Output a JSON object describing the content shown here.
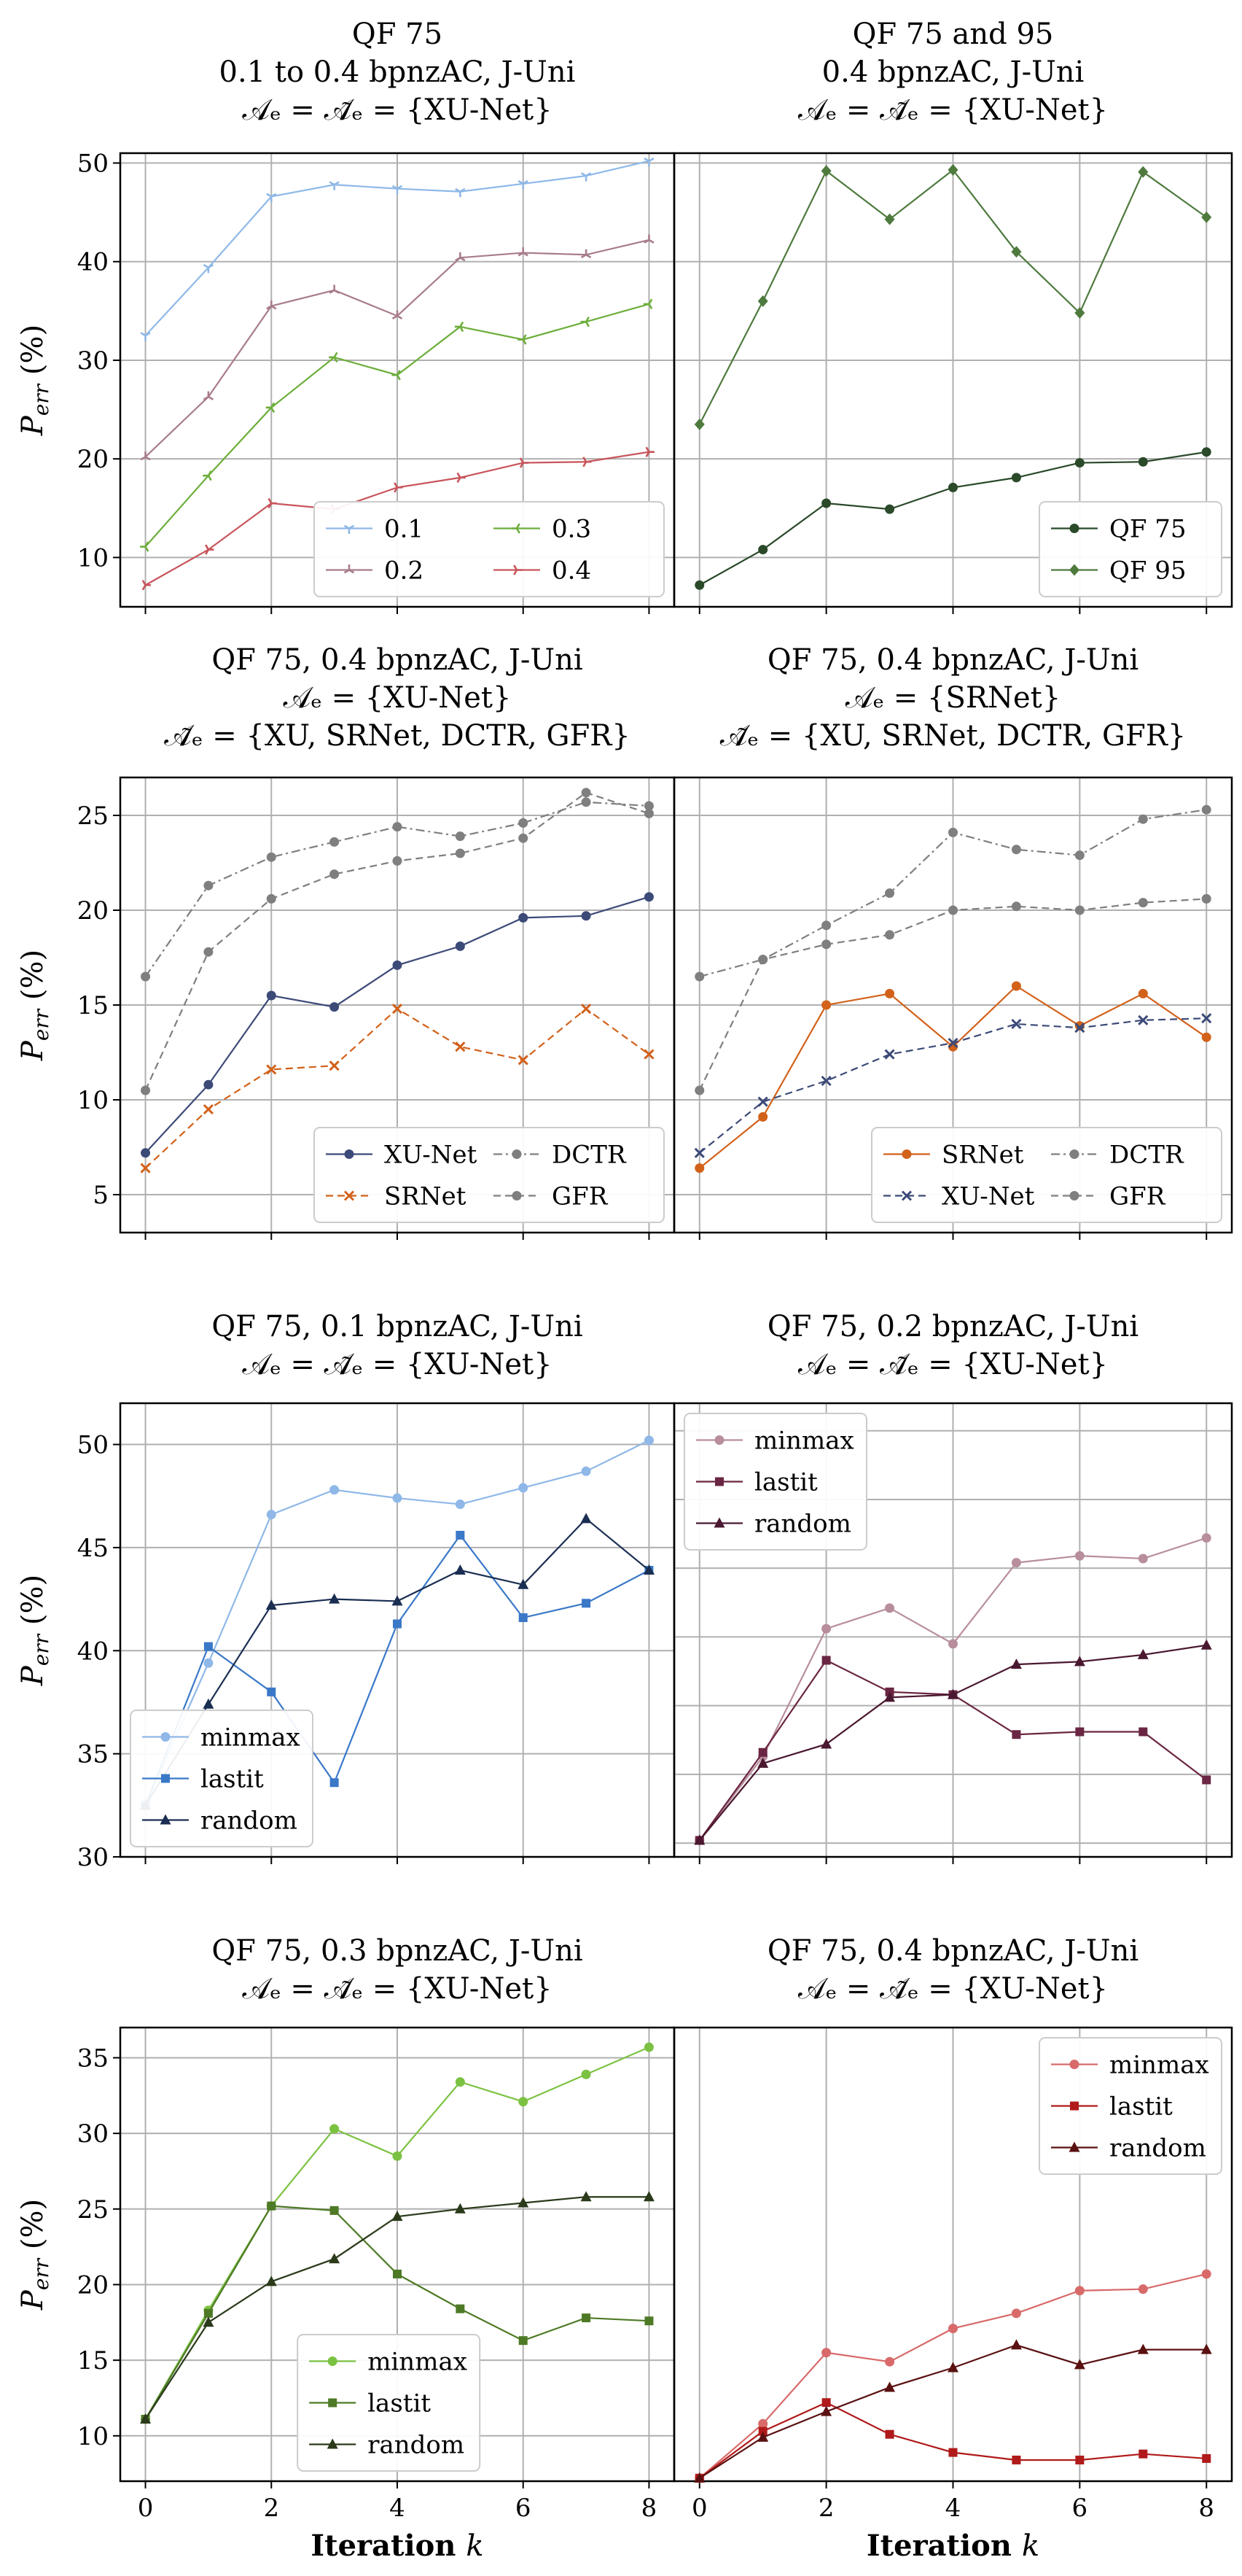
{
  "figure": {
    "x_label_word": "Iteration",
    "x_label_var": "k",
    "y_label": "P_err (%)"
  },
  "chart_data": [
    {
      "type": "line",
      "title_lines": [
        "QF 75",
        "0.1 to 0.4 bpnzAC, J-Uni",
        "𝒜ₑ = 𝒜̃ₑ = {XU-Net}"
      ],
      "x": [
        0,
        1,
        2,
        3,
        4,
        5,
        6,
        7,
        8
      ],
      "xlim": [
        -0.4,
        8.4
      ],
      "ylim": [
        5,
        51
      ],
      "yticks": [
        10,
        20,
        30,
        40,
        50
      ],
      "xticks": [
        0,
        2,
        4,
        6,
        8
      ],
      "ylabel": "P_err (%)",
      "xlabel": "",
      "grid": true,
      "legend": "bottom-right",
      "legend_cols": 2,
      "series": [
        {
          "name": "0.1",
          "color": "#8fb8e8",
          "marker": "tri_down",
          "dash": "solid",
          "values": [
            32.5,
            39.4,
            46.6,
            47.8,
            47.4,
            47.1,
            47.9,
            48.7,
            50.2
          ]
        },
        {
          "name": "0.2",
          "color": "#a87c8a",
          "marker": "tri_up",
          "dash": "solid",
          "values": [
            20.2,
            26.3,
            35.5,
            37.1,
            34.5,
            40.4,
            40.9,
            40.7,
            42.2
          ]
        },
        {
          "name": "0.3",
          "color": "#6cae3a",
          "marker": "tri_left",
          "dash": "solid",
          "values": [
            11.1,
            18.3,
            25.2,
            30.3,
            28.5,
            33.4,
            32.1,
            33.9,
            35.7
          ]
        },
        {
          "name": "0.4",
          "color": "#c8545b",
          "marker": "tri_right",
          "dash": "solid",
          "values": [
            7.2,
            10.8,
            15.5,
            14.9,
            17.1,
            18.1,
            19.6,
            19.7,
            20.7
          ]
        }
      ]
    },
    {
      "type": "line",
      "title_lines": [
        "QF 75 and 95",
        "0.4 bpnzAC, J-Uni",
        "𝒜ₑ = 𝒜̃ₑ = {XU-Net}"
      ],
      "x": [
        0,
        1,
        2,
        3,
        4,
        5,
        6,
        7,
        8
      ],
      "xlim": [
        -0.4,
        8.4
      ],
      "ylim": [
        5,
        51
      ],
      "yticks": [
        10,
        20,
        30,
        40,
        50
      ],
      "xticks": [
        0,
        2,
        4,
        6,
        8
      ],
      "grid": true,
      "legend": "bottom-right",
      "legend_cols": 1,
      "series": [
        {
          "name": "QF 75",
          "color": "#2a4a2a",
          "marker": "circle",
          "dash": "solid",
          "values": [
            7.2,
            10.8,
            15.5,
            14.9,
            17.1,
            18.1,
            19.6,
            19.7,
            20.7
          ]
        },
        {
          "name": "QF 95",
          "color": "#4e7a3e",
          "marker": "diamond",
          "dash": "solid",
          "values": [
            23.5,
            36.0,
            49.2,
            44.3,
            49.3,
            41.0,
            34.8,
            49.1,
            44.5
          ]
        }
      ]
    },
    {
      "type": "line",
      "title_lines": [
        "QF 75, 0.4 bpnzAC, J-Uni",
        "𝒜ₑ = {XU-Net}",
        "𝒜̃ₑ = {XU, SRNet, DCTR, GFR}"
      ],
      "x": [
        0,
        1,
        2,
        3,
        4,
        5,
        6,
        7,
        8
      ],
      "xlim": [
        -0.4,
        8.4
      ],
      "ylim": [
        3,
        27
      ],
      "yticks": [
        5,
        10,
        15,
        20,
        25
      ],
      "xticks": [
        0,
        2,
        4,
        6,
        8
      ],
      "grid": true,
      "legend": "bottom-right",
      "legend_cols": 2,
      "series": [
        {
          "name": "XU-Net",
          "color": "#3c4a78",
          "marker": "circle",
          "dash": "solid",
          "values": [
            7.2,
            10.8,
            15.5,
            14.9,
            17.1,
            18.1,
            19.6,
            19.7,
            20.7
          ]
        },
        {
          "name": "SRNet",
          "color": "#d2611a",
          "marker": "x",
          "dash": "dashed",
          "values": [
            6.4,
            9.5,
            11.6,
            11.8,
            14.8,
            12.8,
            12.1,
            14.8,
            12.4
          ]
        },
        {
          "name": "DCTR",
          "color": "#7f7f7f",
          "marker": "circle",
          "dash": "dashdot",
          "values": [
            16.5,
            21.3,
            22.8,
            23.6,
            24.4,
            23.9,
            24.6,
            25.7,
            25.5
          ]
        },
        {
          "name": "GFR",
          "color": "#7f7f7f",
          "marker": "circle",
          "dash": "dashed",
          "values": [
            10.5,
            17.8,
            20.6,
            21.9,
            22.6,
            23.0,
            23.8,
            26.2,
            25.1
          ]
        }
      ]
    },
    {
      "type": "line",
      "title_lines": [
        "QF 75, 0.4 bpnzAC, J-Uni",
        "𝒜ₑ = {SRNet}",
        "𝒜̃ₑ = {XU, SRNet, DCTR, GFR}"
      ],
      "x": [
        0,
        1,
        2,
        3,
        4,
        5,
        6,
        7,
        8
      ],
      "xlim": [
        -0.4,
        8.4
      ],
      "ylim": [
        3,
        27
      ],
      "yticks": [
        5,
        10,
        15,
        20,
        25
      ],
      "xticks": [
        0,
        2,
        4,
        6,
        8
      ],
      "grid": true,
      "legend": "bottom-right",
      "legend_cols": 2,
      "series": [
        {
          "name": "SRNet",
          "color": "#d2611a",
          "marker": "circle",
          "dash": "solid",
          "values": [
            6.4,
            9.1,
            15.0,
            15.6,
            12.8,
            16.0,
            13.9,
            15.6,
            13.3
          ]
        },
        {
          "name": "XU-Net",
          "color": "#3c4a78",
          "marker": "x",
          "dash": "dashed",
          "values": [
            7.2,
            9.9,
            11.0,
            12.4,
            13.0,
            14.0,
            13.8,
            14.2,
            14.3
          ]
        },
        {
          "name": "DCTR",
          "color": "#7f7f7f",
          "marker": "circle",
          "dash": "dashdot",
          "values": [
            16.5,
            17.4,
            19.2,
            20.9,
            24.1,
            23.2,
            22.9,
            24.8,
            25.3
          ]
        },
        {
          "name": "GFR",
          "color": "#7f7f7f",
          "marker": "circle",
          "dash": "dashed",
          "values": [
            10.5,
            17.4,
            18.2,
            18.7,
            20.0,
            20.2,
            20.0,
            20.4,
            20.6
          ]
        }
      ]
    },
    {
      "type": "line",
      "title_lines": [
        "QF 75, 0.1 bpnzAC, J-Uni",
        "𝒜ₑ = 𝒜̃ₑ = {XU-Net}"
      ],
      "x": [
        0,
        1,
        2,
        3,
        4,
        5,
        6,
        7,
        8
      ],
      "xlim": [
        -0.4,
        8.4
      ],
      "ylim": [
        30,
        52
      ],
      "yticks": [
        30,
        35,
        40,
        45,
        50
      ],
      "xticks": [
        0,
        2,
        4,
        6,
        8
      ],
      "grid": true,
      "legend": "bottom-left",
      "legend_cols": 1,
      "series": [
        {
          "name": "minmax",
          "color": "#8fb8e8",
          "marker": "circle",
          "dash": "solid",
          "values": [
            32.5,
            39.4,
            46.6,
            47.8,
            47.4,
            47.1,
            47.9,
            48.7,
            50.2
          ]
        },
        {
          "name": "lastit",
          "color": "#3a78c8",
          "marker": "square",
          "dash": "solid",
          "values": [
            32.5,
            40.2,
            38.0,
            33.6,
            41.3,
            45.6,
            41.6,
            42.3,
            43.9
          ]
        },
        {
          "name": "random",
          "color": "#1a2e52",
          "marker": "triangle",
          "dash": "solid",
          "values": [
            32.5,
            37.4,
            42.2,
            42.5,
            42.4,
            43.9,
            43.2,
            46.4,
            43.9
          ]
        }
      ]
    },
    {
      "type": "line",
      "title_lines": [
        "QF 75, 0.2 bpnzAC, J-Uni",
        "𝒜ₑ = 𝒜̃ₑ = {XU-Net}"
      ],
      "x": [
        0,
        1,
        2,
        3,
        4,
        5,
        6,
        7,
        8
      ],
      "xlim": [
        -0.4,
        8.4
      ],
      "ylim": [
        19,
        52
      ],
      "yticks": [
        20,
        25,
        30,
        35,
        40,
        45,
        50
      ],
      "xticks": [
        0,
        2,
        4,
        6,
        8
      ],
      "grid": true,
      "legend": "top-left",
      "legend_cols": 1,
      "series": [
        {
          "name": "minmax",
          "color": "#b88e9c",
          "marker": "circle",
          "dash": "solid",
          "values": [
            20.2,
            26.3,
            35.6,
            37.1,
            34.5,
            40.4,
            40.9,
            40.7,
            42.2
          ]
        },
        {
          "name": "lastit",
          "color": "#6a2642",
          "marker": "square",
          "dash": "solid",
          "values": [
            20.2,
            26.6,
            33.3,
            31.0,
            30.8,
            27.9,
            28.1,
            28.1,
            24.6
          ]
        },
        {
          "name": "random",
          "color": "#4a1830",
          "marker": "triangle",
          "dash": "solid",
          "values": [
            20.2,
            25.8,
            27.2,
            30.6,
            30.8,
            33.0,
            33.2,
            33.7,
            34.4
          ]
        }
      ]
    },
    {
      "type": "line",
      "title_lines": [
        "QF 75, 0.3 bpnzAC, J-Uni",
        "𝒜ₑ = 𝒜̃ₑ = {XU-Net}"
      ],
      "x": [
        0,
        1,
        2,
        3,
        4,
        5,
        6,
        7,
        8
      ],
      "xlim": [
        -0.4,
        8.4
      ],
      "ylim": [
        7,
        37
      ],
      "yticks": [
        10,
        15,
        20,
        25,
        30,
        35
      ],
      "xticks": [
        0,
        2,
        4,
        6,
        8
      ],
      "xlabel": "Iteration k",
      "grid": true,
      "legend": "bottom-center",
      "legend_cols": 1,
      "series": [
        {
          "name": "minmax",
          "color": "#7cc242",
          "marker": "circle",
          "dash": "solid",
          "values": [
            11.1,
            18.3,
            25.2,
            30.3,
            28.5,
            33.4,
            32.1,
            33.9,
            35.7
          ]
        },
        {
          "name": "lastit",
          "color": "#4e7a26",
          "marker": "square",
          "dash": "solid",
          "values": [
            11.1,
            18.1,
            25.2,
            24.9,
            20.7,
            18.4,
            16.3,
            17.8,
            17.6
          ]
        },
        {
          "name": "random",
          "color": "#2a3a1a",
          "marker": "triangle",
          "dash": "solid",
          "values": [
            11.1,
            17.5,
            20.2,
            21.7,
            24.5,
            25.0,
            25.4,
            25.8,
            25.8
          ]
        }
      ]
    },
    {
      "type": "line",
      "title_lines": [
        "QF 75, 0.4 bpnzAC, J-Uni",
        "𝒜ₑ = 𝒜̃ₑ = {XU-Net}"
      ],
      "x": [
        0,
        1,
        2,
        3,
        4,
        5,
        6,
        7,
        8
      ],
      "xlim": [
        -0.4,
        8.4
      ],
      "ylim": [
        7,
        37
      ],
      "yticks": [],
      "xticks": [
        0,
        2,
        4,
        6,
        8
      ],
      "xlabel": "Iteration k",
      "grid": true,
      "legend": "top-right",
      "legend_cols": 1,
      "series": [
        {
          "name": "minmax",
          "color": "#d86a6a",
          "marker": "circle",
          "dash": "solid",
          "values": [
            7.2,
            10.8,
            15.5,
            14.9,
            17.1,
            18.1,
            19.6,
            19.7,
            20.7
          ]
        },
        {
          "name": "lastit",
          "color": "#b01a1a",
          "marker": "square",
          "dash": "solid",
          "values": [
            7.2,
            10.3,
            12.2,
            10.1,
            8.9,
            8.4,
            8.4,
            8.8,
            8.5
          ]
        },
        {
          "name": "random",
          "color": "#5a1010",
          "marker": "triangle",
          "dash": "solid",
          "values": [
            7.2,
            9.9,
            11.6,
            13.2,
            14.5,
            16.0,
            14.7,
            15.7,
            15.7
          ]
        }
      ]
    }
  ]
}
